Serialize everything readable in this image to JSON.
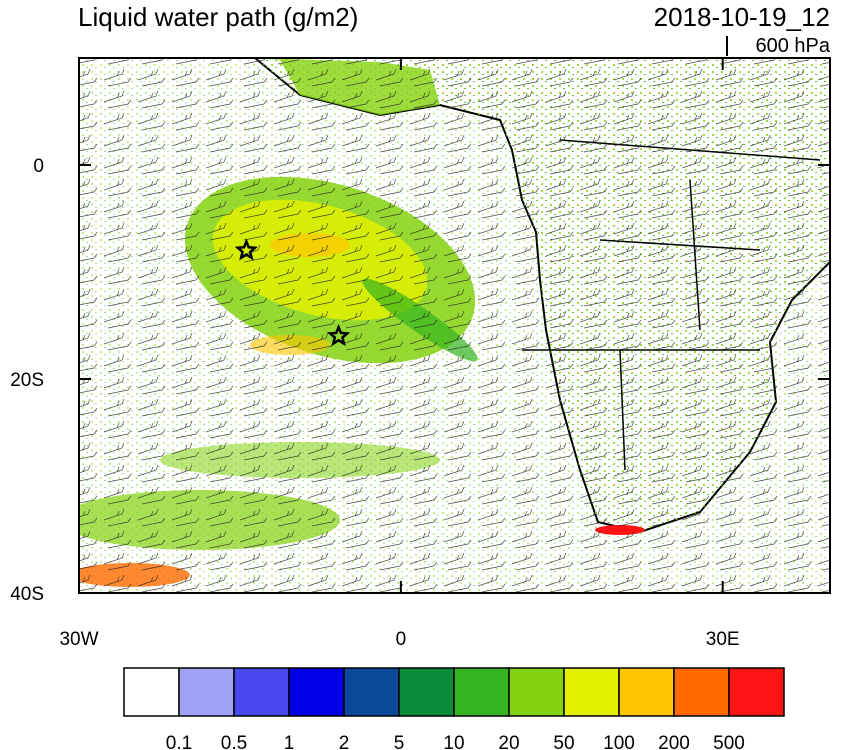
{
  "header": {
    "title": "Liquid water path (g/m2)",
    "valid_time": "2018-10-19_12",
    "level": "600 hPa"
  },
  "map": {
    "lonlim": [
      -30,
      40
    ],
    "latlim": [
      -40,
      10
    ],
    "xticks": [
      {
        "value": -30,
        "label": "30W"
      },
      0,
      {
        "value": 30,
        "label": "30E"
      }
    ],
    "yticks": [
      0,
      {
        "value": -20,
        "label": "20S"
      },
      {
        "value": -40,
        "label": "40S"
      }
    ],
    "markers": [
      {
        "lon": -14.4,
        "lat": -8.0
      },
      {
        "lon": -5.8,
        "lat": -16.0
      }
    ]
  },
  "colorbar": {
    "levels": [
      0.1,
      0.5,
      1,
      2,
      5,
      10,
      20,
      50,
      100,
      200,
      500
    ],
    "colors": [
      "#ffffff",
      "#a0a0f5",
      "#4848f0",
      "#0000e6",
      "#0a4a9a",
      "#0c8a3c",
      "#34b41e",
      "#84d20e",
      "#e2f000",
      "#ffc400",
      "#ff6a00",
      "#ff1414"
    ]
  }
}
